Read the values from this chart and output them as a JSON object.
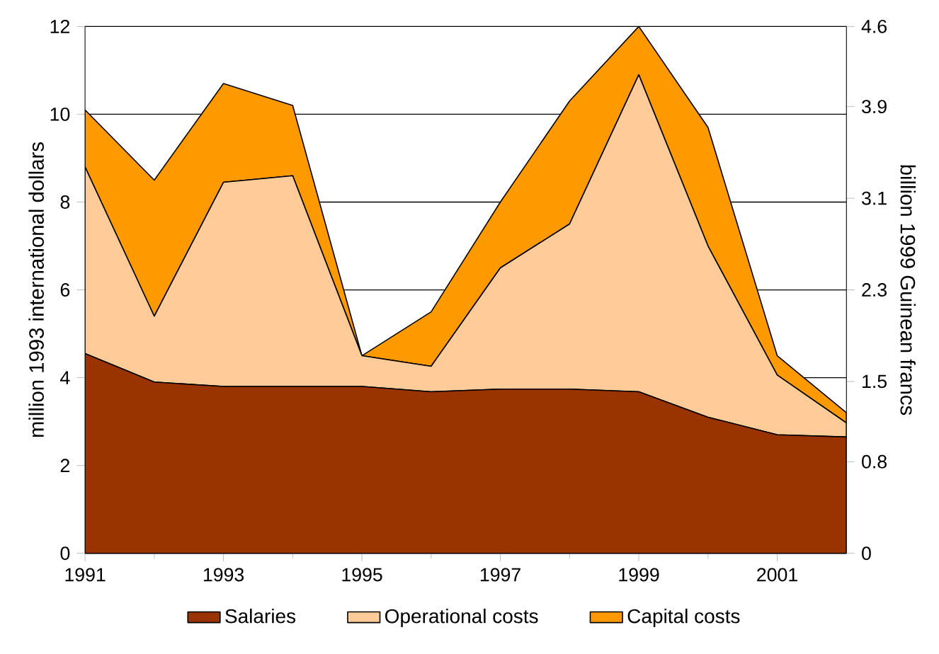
{
  "chart_data": {
    "type": "area",
    "stacked": true,
    "x": [
      1991,
      1992,
      1993,
      1994,
      1995,
      1996,
      1997,
      1998,
      1999,
      2000,
      2001,
      2002
    ],
    "xlim": [
      1991,
      2002
    ],
    "xticks": [
      1991,
      1993,
      1995,
      1997,
      1999,
      2001
    ],
    "ylim": [
      0,
      12
    ],
    "yticks": [
      0,
      2,
      4,
      6,
      8,
      10,
      12
    ],
    "y2lim": [
      0,
      4.6
    ],
    "y2ticks": [
      0,
      0.8,
      1.5,
      2.3,
      3.1,
      3.9,
      4.6
    ],
    "ylabel": "million 1993 international dollars",
    "y2label": "billion 1999 Guinean francs",
    "grid": "y",
    "legend": "bottom",
    "series": [
      {
        "name": "Salaries",
        "color": "#993300",
        "values": [
          4.55,
          3.9,
          3.8,
          3.8,
          3.8,
          3.68,
          3.74,
          3.74,
          3.68,
          3.1,
          2.7,
          2.65
        ]
      },
      {
        "name": "Operational costs",
        "color": "#ffcc99",
        "values": [
          4.25,
          1.5,
          4.65,
          4.8,
          0.7,
          0.58,
          2.76,
          3.76,
          7.22,
          3.9,
          1.36,
          0.32
        ]
      },
      {
        "name": "Capital costs",
        "color": "#ff9900",
        "values": [
          1.3,
          3.1,
          2.25,
          1.6,
          0,
          1.24,
          1.5,
          2.8,
          1.1,
          2.7,
          0.44,
          0.23
        ]
      }
    ]
  }
}
